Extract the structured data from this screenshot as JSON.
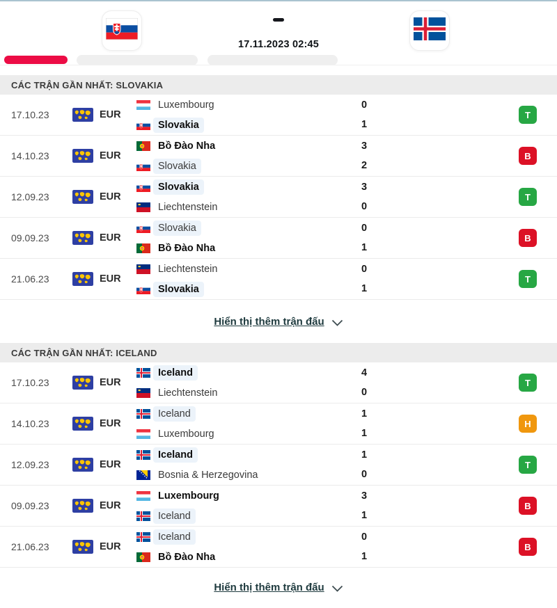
{
  "header": {
    "home_team_flag": "sk",
    "away_team_flag": "is",
    "datetime": "17.11.2023 02:45"
  },
  "theme": {
    "win_color": "#27a744",
    "loss_color": "#dc1126",
    "draw_color": "#f0970e",
    "active_tab_color": "#ec0c45",
    "highlight_color": "#ecf3fa"
  },
  "sections": [
    {
      "title": "CÁC TRẬN GẦN NHẤT: SLOVAKIA",
      "show_more": "Hiển thị thêm trận đấu",
      "matches": [
        {
          "date": "17.10.23",
          "competition": "EUR",
          "team1": {
            "name": "Luxembourg",
            "flag": "lu",
            "score": "0",
            "winner": false,
            "highlighted": false
          },
          "team2": {
            "name": "Slovakia",
            "flag": "sk",
            "score": "1",
            "winner": true,
            "highlighted": true
          },
          "result": {
            "label": "T",
            "type": "win"
          }
        },
        {
          "date": "14.10.23",
          "competition": "EUR",
          "team1": {
            "name": "Bồ Đào Nha",
            "flag": "pt",
            "score": "3",
            "winner": true,
            "highlighted": false
          },
          "team2": {
            "name": "Slovakia",
            "flag": "sk",
            "score": "2",
            "winner": false,
            "highlighted": true
          },
          "result": {
            "label": "B",
            "type": "loss"
          }
        },
        {
          "date": "12.09.23",
          "competition": "EUR",
          "team1": {
            "name": "Slovakia",
            "flag": "sk",
            "score": "3",
            "winner": true,
            "highlighted": true
          },
          "team2": {
            "name": "Liechtenstein",
            "flag": "li",
            "score": "0",
            "winner": false,
            "highlighted": false
          },
          "result": {
            "label": "T",
            "type": "win"
          }
        },
        {
          "date": "09.09.23",
          "competition": "EUR",
          "team1": {
            "name": "Slovakia",
            "flag": "sk",
            "score": "0",
            "winner": false,
            "highlighted": true
          },
          "team2": {
            "name": "Bồ Đào Nha",
            "flag": "pt",
            "score": "1",
            "winner": true,
            "highlighted": false
          },
          "result": {
            "label": "B",
            "type": "loss"
          }
        },
        {
          "date": "21.06.23",
          "competition": "EUR",
          "team1": {
            "name": "Liechtenstein",
            "flag": "li",
            "score": "0",
            "winner": false,
            "highlighted": false
          },
          "team2": {
            "name": "Slovakia",
            "flag": "sk",
            "score": "1",
            "winner": true,
            "highlighted": true
          },
          "result": {
            "label": "T",
            "type": "win"
          }
        }
      ]
    },
    {
      "title": "CÁC TRẬN GẦN NHẤT: ICELAND",
      "show_more": "Hiển thị thêm trận đấu",
      "matches": [
        {
          "date": "17.10.23",
          "competition": "EUR",
          "team1": {
            "name": "Iceland",
            "flag": "is",
            "score": "4",
            "winner": true,
            "highlighted": true
          },
          "team2": {
            "name": "Liechtenstein",
            "flag": "li",
            "score": "0",
            "winner": false,
            "highlighted": false
          },
          "result": {
            "label": "T",
            "type": "win"
          }
        },
        {
          "date": "14.10.23",
          "competition": "EUR",
          "team1": {
            "name": "Iceland",
            "flag": "is",
            "score": "1",
            "winner": false,
            "highlighted": true
          },
          "team2": {
            "name": "Luxembourg",
            "flag": "lu",
            "score": "1",
            "winner": false,
            "highlighted": false
          },
          "result": {
            "label": "H",
            "type": "draw"
          }
        },
        {
          "date": "12.09.23",
          "competition": "EUR",
          "team1": {
            "name": "Iceland",
            "flag": "is",
            "score": "1",
            "winner": true,
            "highlighted": true
          },
          "team2": {
            "name": "Bosnia & Herzegovina",
            "flag": "ba",
            "score": "0",
            "winner": false,
            "highlighted": false
          },
          "result": {
            "label": "T",
            "type": "win"
          }
        },
        {
          "date": "09.09.23",
          "competition": "EUR",
          "team1": {
            "name": "Luxembourg",
            "flag": "lu",
            "score": "3",
            "winner": true,
            "highlighted": false
          },
          "team2": {
            "name": "Iceland",
            "flag": "is",
            "score": "1",
            "winner": false,
            "highlighted": true
          },
          "result": {
            "label": "B",
            "type": "loss"
          }
        },
        {
          "date": "21.06.23",
          "competition": "EUR",
          "team1": {
            "name": "Iceland",
            "flag": "is",
            "score": "0",
            "winner": false,
            "highlighted": true
          },
          "team2": {
            "name": "Bồ Đào Nha",
            "flag": "pt",
            "score": "1",
            "winner": true,
            "highlighted": false
          },
          "result": {
            "label": "B",
            "type": "loss"
          }
        }
      ]
    }
  ]
}
